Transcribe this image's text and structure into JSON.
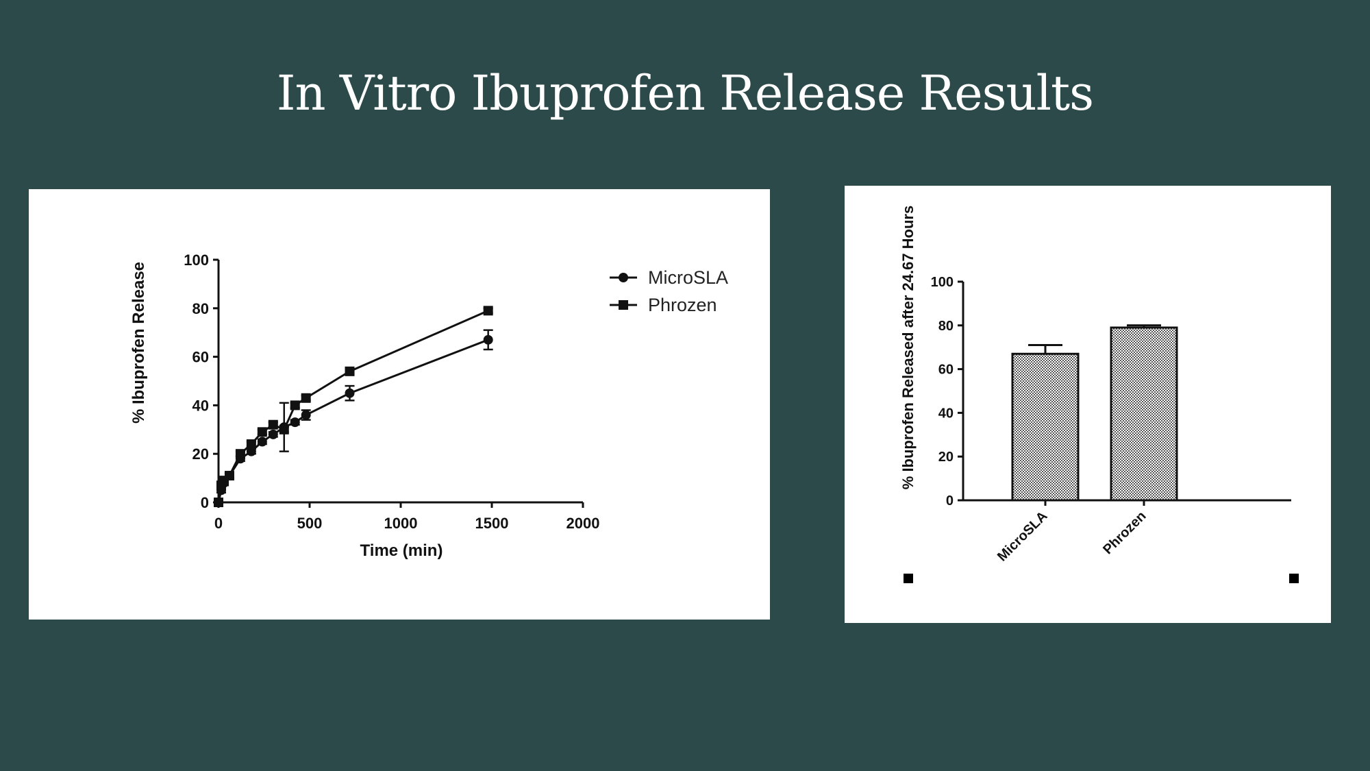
{
  "slide": {
    "title": "In Vitro Ibuprofen Release Results"
  },
  "colors": {
    "background": "#2d4a4b",
    "panel": "#ffffff",
    "ink": "#111111"
  },
  "chart_data": [
    {
      "type": "line",
      "title": "",
      "xlabel": "Time (min)",
      "ylabel": "%  Ibuprofen Release",
      "xlim": [
        0,
        2000
      ],
      "ylim": [
        0,
        100
      ],
      "xticks": [
        0,
        500,
        1000,
        1500,
        2000
      ],
      "yticks": [
        0,
        20,
        40,
        60,
        80,
        100
      ],
      "grid": false,
      "legend_position": "top-right",
      "series": [
        {
          "name": "MicroSLA",
          "marker": "circle",
          "x": [
            0,
            15,
            30,
            60,
            120,
            180,
            240,
            300,
            360,
            420,
            480,
            720,
            1480
          ],
          "y": [
            0,
            5,
            8,
            11,
            18,
            21,
            25,
            28,
            31,
            33,
            36,
            45,
            67
          ],
          "err": [
            0,
            1,
            1,
            1,
            1,
            1,
            1,
            1,
            10,
            1,
            2,
            3,
            4
          ]
        },
        {
          "name": "Phrozen",
          "marker": "square",
          "x": [
            0,
            15,
            30,
            60,
            120,
            180,
            240,
            300,
            360,
            420,
            480,
            720,
            1480
          ],
          "y": [
            0,
            7,
            9,
            11,
            20,
            24,
            29,
            32,
            30,
            40,
            43,
            54,
            79
          ],
          "err": [
            0,
            1,
            1,
            1,
            1,
            1,
            1,
            1,
            1,
            1,
            1,
            1,
            1
          ]
        }
      ]
    },
    {
      "type": "bar",
      "title": "",
      "xlabel": "",
      "ylabel": "% Ibuprofen Released after 24.67 Hours",
      "ylim": [
        0,
        100
      ],
      "yticks": [
        0,
        20,
        40,
        60,
        80,
        100
      ],
      "grid": false,
      "categories": [
        "MicroSLA",
        "Phrozen"
      ],
      "values": [
        67,
        79
      ],
      "errors": [
        4,
        1
      ],
      "fill": "checkered"
    }
  ]
}
